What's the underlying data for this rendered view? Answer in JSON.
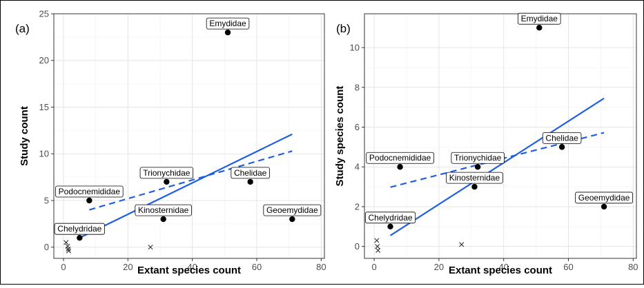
{
  "chart_data": [
    {
      "type": "scatter",
      "panel": "(a)",
      "xlabel": "Extant species count",
      "ylabel": "Study count",
      "xlim": [
        -3,
        81
      ],
      "ylim": [
        -1.2,
        25
      ],
      "xticks": [
        0,
        20,
        40,
        60,
        80
      ],
      "yticks": [
        0,
        5,
        10,
        15,
        20,
        25
      ],
      "grid": true,
      "points": [
        {
          "label": "Emydidae",
          "x": 51,
          "y": 23
        },
        {
          "label": "Trionychidae",
          "x": 32,
          "y": 7
        },
        {
          "label": "Chelidae",
          "x": 58,
          "y": 7
        },
        {
          "label": "Podocnemididae",
          "x": 8,
          "y": 5
        },
        {
          "label": "Kinosternidae",
          "x": 31,
          "y": 3
        },
        {
          "label": "Geoemydidae",
          "x": 71,
          "y": 3
        },
        {
          "label": "Chelydridae",
          "x": 5,
          "y": 1
        }
      ],
      "x_markers": [
        {
          "x": 0.8,
          "y": 0.5
        },
        {
          "x": 1.3,
          "y": 0.1
        },
        {
          "x": 1.5,
          "y": -0.2
        },
        {
          "x": 1.6,
          "y": -0.4
        },
        {
          "x": 27,
          "y": 0
        }
      ],
      "solid_fit": {
        "x": [
          5,
          71
        ],
        "y": [
          1.0,
          12.1
        ]
      },
      "dashed_fit": {
        "x": [
          8,
          71
        ],
        "y": [
          4.0,
          10.3
        ]
      }
    },
    {
      "type": "scatter",
      "panel": "(b)",
      "xlabel": "Extant species count",
      "ylabel": "Study species count",
      "xlim": [
        -3,
        81
      ],
      "ylim": [
        -0.6,
        11.7
      ],
      "xticks": [
        0,
        20,
        40,
        60,
        80
      ],
      "yticks": [
        0,
        2,
        4,
        6,
        8,
        10
      ],
      "grid": true,
      "points": [
        {
          "label": "Emydidae",
          "x": 51,
          "y": 11
        },
        {
          "label": "Podocnemididae",
          "x": 8,
          "y": 4
        },
        {
          "label": "Trionychidae",
          "x": 32,
          "y": 4
        },
        {
          "label": "Kinosternidae",
          "x": 31,
          "y": 3
        },
        {
          "label": "Chelidae",
          "x": 58,
          "y": 5
        },
        {
          "label": "Geoemydidae",
          "x": 71,
          "y": 2
        },
        {
          "label": "Chelydridae",
          "x": 5,
          "y": 1
        }
      ],
      "x_markers": [
        {
          "x": 0.8,
          "y": 0.3
        },
        {
          "x": 1.0,
          "y": 0.0
        },
        {
          "x": 1.2,
          "y": -0.2
        },
        {
          "x": 27,
          "y": 0.1
        }
      ],
      "solid_fit": {
        "x": [
          5,
          71
        ],
        "y": [
          0.55,
          7.45
        ]
      },
      "dashed_fit": {
        "x": [
          5,
          71
        ],
        "y": [
          2.98,
          5.72
        ]
      }
    }
  ]
}
